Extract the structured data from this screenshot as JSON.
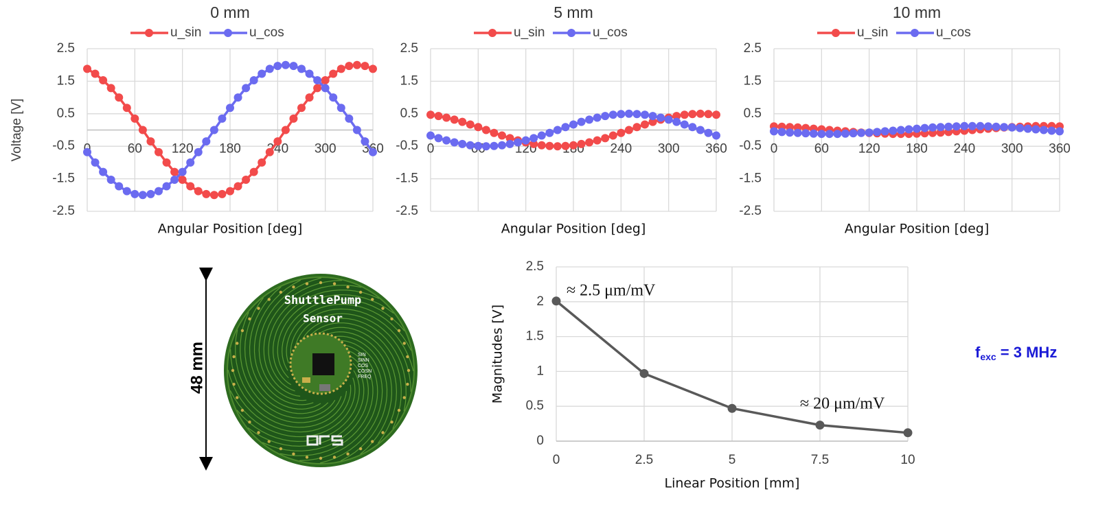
{
  "chart_data": [
    {
      "type": "line",
      "title": "0 mm",
      "x_label": "Angular Position [deg]",
      "y_label": "Voltage [V]",
      "x": [
        0,
        10,
        20,
        30,
        40,
        50,
        60,
        70,
        80,
        90,
        100,
        110,
        120,
        130,
        140,
        150,
        160,
        170,
        180,
        190,
        200,
        210,
        220,
        230,
        240,
        250,
        260,
        270,
        280,
        290,
        300,
        310,
        320,
        330,
        340,
        350,
        360
      ],
      "series": [
        {
          "name": "u_sin",
          "color": "#f24b4b",
          "values": [
            1.88,
            1.73,
            1.53,
            1.29,
            1.0,
            0.68,
            0.35,
            0,
            -0.35,
            -0.68,
            -1.0,
            -1.29,
            -1.53,
            -1.73,
            -1.88,
            -1.97,
            -2.0,
            -1.97,
            -1.88,
            -1.73,
            -1.53,
            -1.29,
            -1.0,
            -0.68,
            -0.35,
            0,
            0.35,
            0.68,
            1.0,
            1.29,
            1.53,
            1.73,
            1.88,
            1.97,
            2.0,
            1.97,
            1.88
          ]
        },
        {
          "name": "u_cos",
          "color": "#6b6bf0",
          "values": [
            -0.68,
            -1.0,
            -1.29,
            -1.53,
            -1.73,
            -1.88,
            -1.97,
            -2.0,
            -1.97,
            -1.88,
            -1.73,
            -1.53,
            -1.29,
            -1.0,
            -0.68,
            -0.35,
            0,
            0.35,
            0.68,
            1.0,
            1.29,
            1.53,
            1.73,
            1.88,
            1.97,
            2.0,
            1.97,
            1.88,
            1.73,
            1.53,
            1.29,
            1.0,
            0.68,
            0.35,
            0,
            -0.35,
            -0.68
          ]
        }
      ],
      "xlim": [
        0,
        360
      ],
      "xticks": [
        0,
        60,
        120,
        180,
        240,
        300,
        360
      ],
      "ylim": [
        -2.5,
        2.5
      ],
      "yticks": [
        -2.5,
        -1.5,
        -0.5,
        0.5,
        1.5,
        2.5
      ],
      "grid": true
    },
    {
      "type": "line",
      "title": "5 mm",
      "x_label": "Angular Position [deg]",
      "x": [
        0,
        10,
        20,
        30,
        40,
        50,
        60,
        70,
        80,
        90,
        100,
        110,
        120,
        130,
        140,
        150,
        160,
        170,
        180,
        190,
        200,
        210,
        220,
        230,
        240,
        250,
        260,
        270,
        280,
        290,
        300,
        310,
        320,
        330,
        340,
        350,
        360
      ],
      "series": [
        {
          "name": "u_sin",
          "color": "#f24b4b",
          "values": [
            0.47,
            0.43,
            0.38,
            0.32,
            0.25,
            0.17,
            0.09,
            0,
            -0.09,
            -0.17,
            -0.25,
            -0.32,
            -0.38,
            -0.43,
            -0.47,
            -0.49,
            -0.5,
            -0.49,
            -0.47,
            -0.43,
            -0.38,
            -0.32,
            -0.25,
            -0.17,
            -0.09,
            0,
            0.09,
            0.17,
            0.25,
            0.32,
            0.38,
            0.43,
            0.47,
            0.49,
            0.5,
            0.49,
            0.47
          ]
        },
        {
          "name": "u_cos",
          "color": "#6b6bf0",
          "values": [
            -0.17,
            -0.25,
            -0.32,
            -0.38,
            -0.43,
            -0.47,
            -0.49,
            -0.5,
            -0.49,
            -0.47,
            -0.43,
            -0.38,
            -0.32,
            -0.25,
            -0.17,
            -0.09,
            0,
            0.09,
            0.17,
            0.25,
            0.32,
            0.38,
            0.43,
            0.47,
            0.49,
            0.5,
            0.49,
            0.47,
            0.43,
            0.38,
            0.32,
            0.25,
            0.17,
            0.09,
            0,
            -0.09,
            -0.17
          ]
        }
      ],
      "xlim": [
        0,
        360
      ],
      "xticks": [
        0,
        60,
        120,
        180,
        240,
        300,
        360
      ],
      "ylim": [
        -2.5,
        2.5
      ],
      "yticks": [
        -2.5,
        -1.5,
        -0.5,
        0.5,
        1.5,
        2.5
      ],
      "grid": true
    },
    {
      "type": "line",
      "title": "10 mm",
      "x_label": "Angular Position [deg]",
      "x": [
        0,
        10,
        20,
        30,
        40,
        50,
        60,
        70,
        80,
        90,
        100,
        110,
        120,
        130,
        140,
        150,
        160,
        170,
        180,
        190,
        200,
        210,
        220,
        230,
        240,
        250,
        260,
        270,
        280,
        290,
        300,
        310,
        320,
        330,
        340,
        350,
        360
      ],
      "series": [
        {
          "name": "u_sin",
          "color": "#f24b4b",
          "values": [
            0.11,
            0.1,
            0.09,
            0.08,
            0.06,
            0.04,
            0.02,
            0,
            -0.02,
            -0.04,
            -0.06,
            -0.08,
            -0.09,
            -0.1,
            -0.11,
            -0.12,
            -0.12,
            -0.12,
            -0.11,
            -0.1,
            -0.09,
            -0.08,
            -0.06,
            -0.04,
            -0.02,
            0,
            0.02,
            0.04,
            0.06,
            0.08,
            0.09,
            0.1,
            0.11,
            0.12,
            0.12,
            0.12,
            0.11
          ]
        },
        {
          "name": "u_cos",
          "color": "#6b6bf0",
          "values": [
            -0.04,
            -0.06,
            -0.08,
            -0.09,
            -0.1,
            -0.11,
            -0.12,
            -0.12,
            -0.12,
            -0.11,
            -0.1,
            -0.09,
            -0.08,
            -0.06,
            -0.04,
            -0.02,
            0,
            0.02,
            0.04,
            0.06,
            0.08,
            0.09,
            0.1,
            0.11,
            0.12,
            0.12,
            0.12,
            0.11,
            0.1,
            0.09,
            0.08,
            0.06,
            0.04,
            0.02,
            0,
            -0.02,
            -0.04
          ]
        }
      ],
      "xlim": [
        0,
        360
      ],
      "xticks": [
        0,
        60,
        120,
        180,
        240,
        300,
        360
      ],
      "ylim": [
        -2.5,
        2.5
      ],
      "yticks": [
        -2.5,
        -1.5,
        -0.5,
        0.5,
        1.5,
        2.5
      ],
      "grid": true
    },
    {
      "type": "line",
      "x_label": "Linear Position [mm]",
      "y_label": "Magnitudes [V]",
      "x": [
        0,
        2.5,
        5,
        7.5,
        10
      ],
      "series": [
        {
          "color": "#595959",
          "values": [
            2.01,
            0.97,
            0.47,
            0.23,
            0.12
          ]
        }
      ],
      "xlim": [
        0,
        10
      ],
      "xticks": [
        0,
        2.5,
        5,
        7.5,
        10
      ],
      "ylim": [
        0,
        2.5
      ],
      "yticks": [
        0,
        0.5,
        1,
        1.5,
        2,
        2.5
      ],
      "grid": true,
      "annotations": [
        "≈ 2.5 μm/mV",
        "≈ 20 μm/mV"
      ]
    }
  ],
  "dimension": {
    "label": "48 mm"
  },
  "excitation": {
    "symbol": "f",
    "subscript": "exc",
    "text": " = 3 MHz"
  },
  "pcb": {
    "title": "ShuttlePump",
    "subtitle": "Sensor",
    "pins": [
      "SIN",
      "SINN",
      "COS",
      "COSN",
      "FREQ"
    ]
  }
}
